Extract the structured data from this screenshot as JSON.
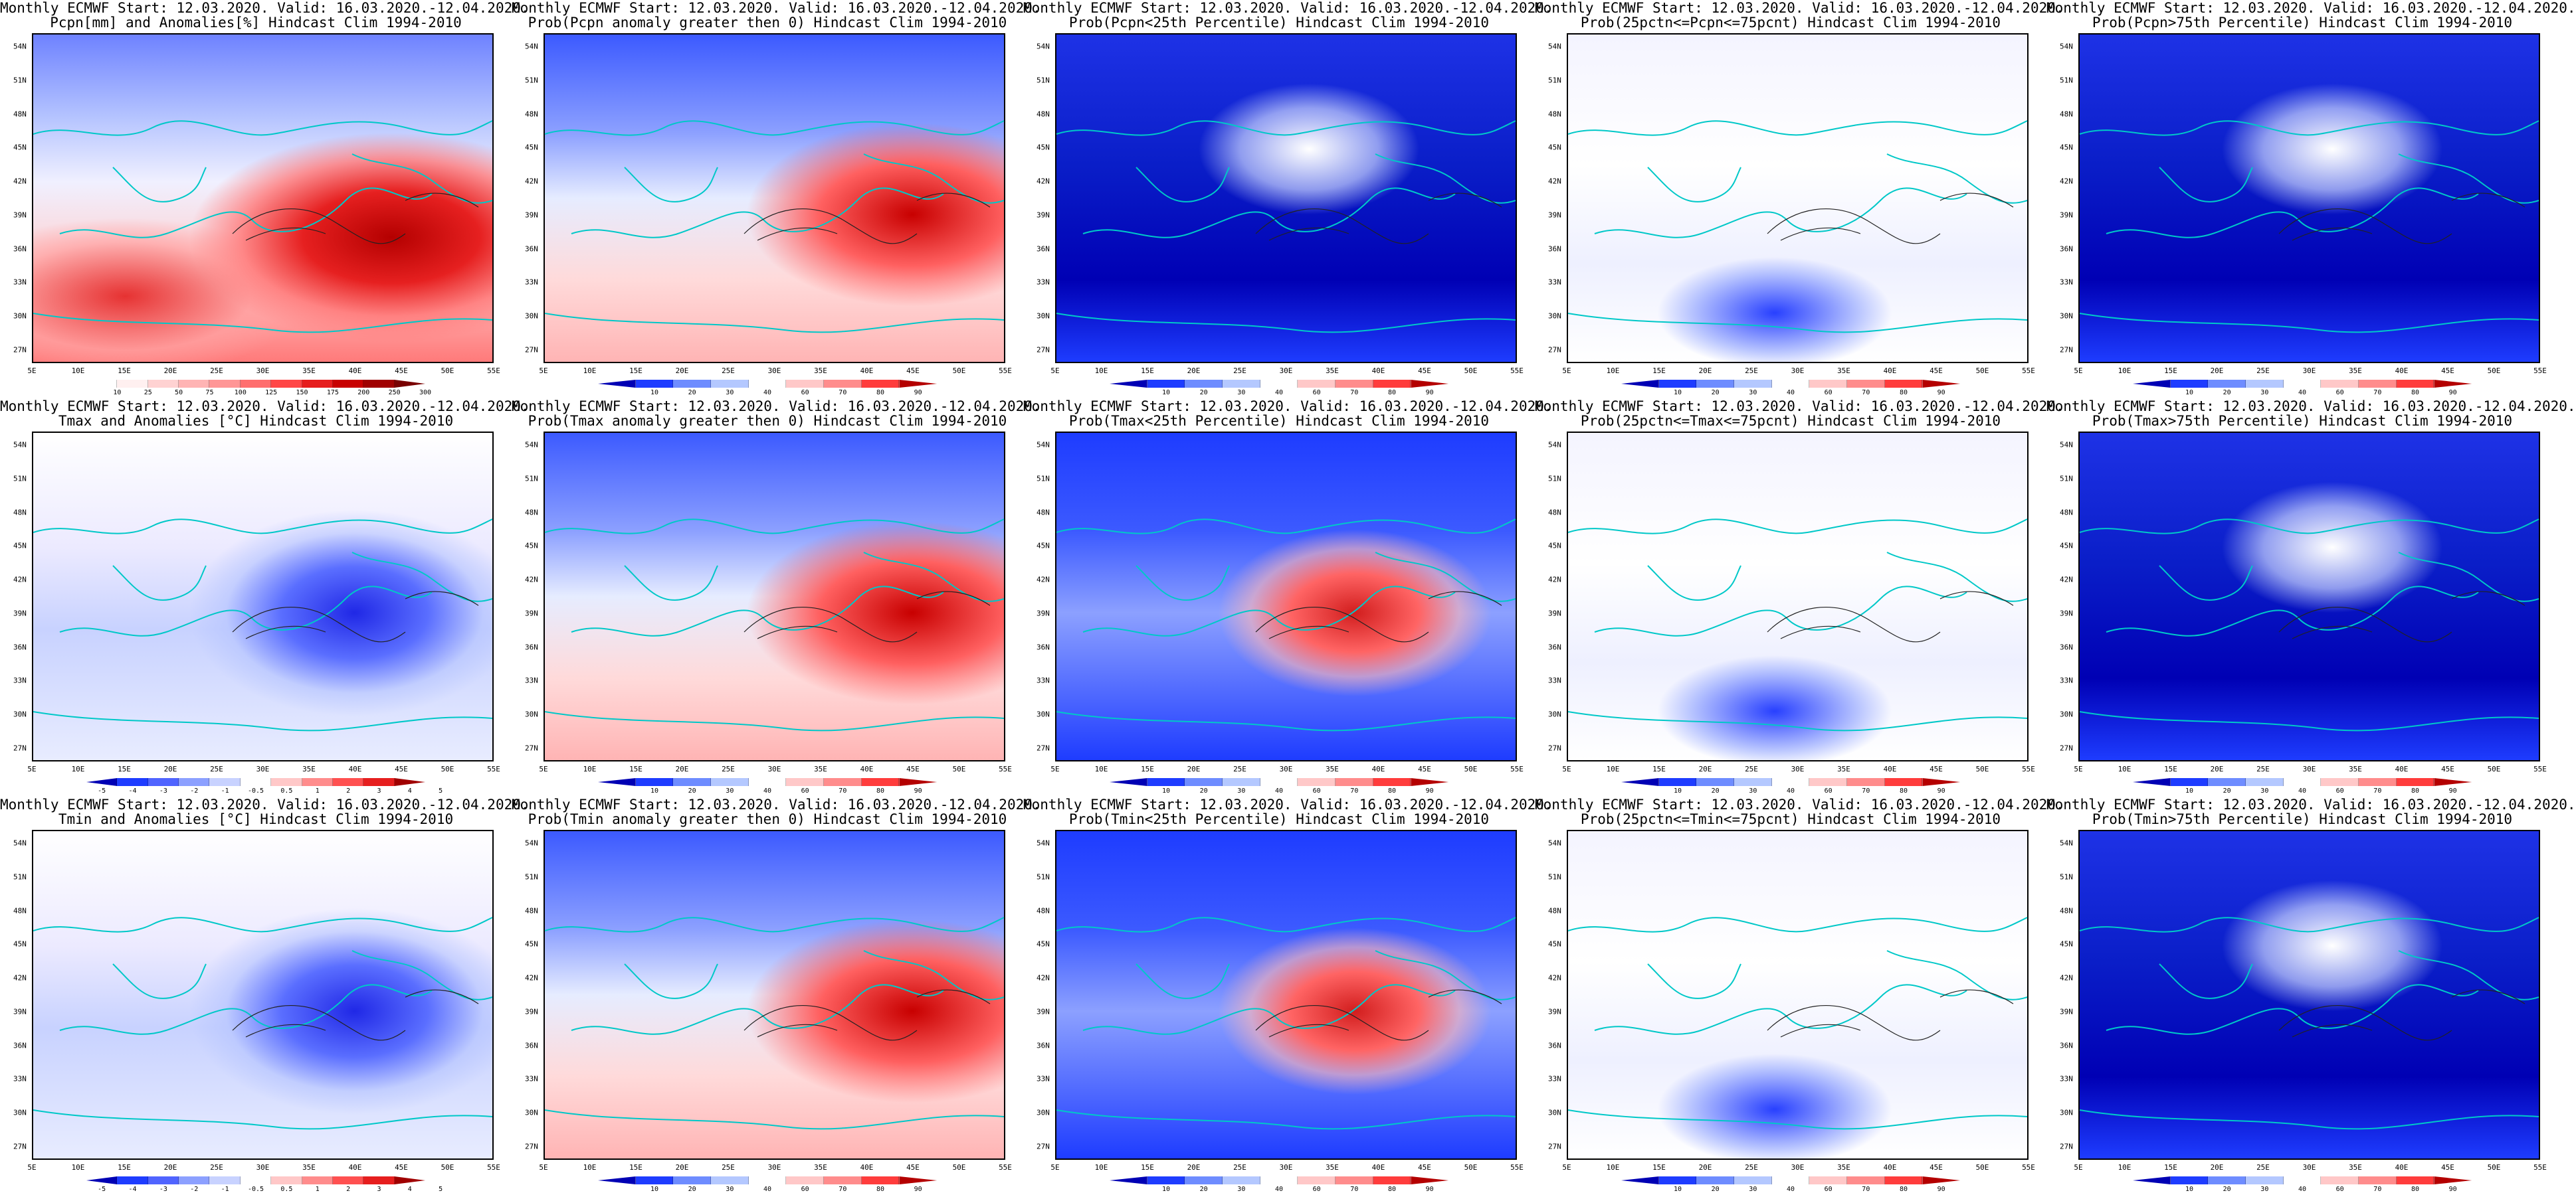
{
  "panels": [
    {
      "line1": "Monthly ECMWF Start: 12.03.2020. Valid: 16.03.2020.-12.04.2020.",
      "line2": "Pcpn[mm] and Anomalies[%] Hindcast Clim 1994-2010",
      "scheme": "pcpn",
      "cbar_labels": [
        "10",
        "25",
        "50",
        "75",
        "100",
        "125",
        "150",
        "175",
        "200",
        "250",
        "300"
      ]
    },
    {
      "line1": "Monthly ECMWF Start: 12.03.2020. Valid: 16.03.2020.-12.04.2020.",
      "line2": "Prob(Pcpn anomaly greater then 0) Hindcast Clim 1994-2010",
      "scheme": "bluered",
      "cbar_labels": [
        "10",
        "20",
        "30",
        "40",
        "60",
        "70",
        "80",
        "90"
      ]
    },
    {
      "line1": "Monthly ECMWF Start: 12.03.2020. Valid: 16.03.2020.-12.04.2020.",
      "line2": "Prob(Pcpn<25th Percentile) Hindcast Clim 1994-2010",
      "scheme": "deepblue",
      "cbar_labels": [
        "10",
        "20",
        "30",
        "40",
        "60",
        "70",
        "80",
        "90"
      ]
    },
    {
      "line1": "Monthly ECMWF Start: 12.03.2020. Valid: 16.03.2020.-12.04.2020.",
      "line2": "Prob(25pctn<=Pcpn<=75pcnt) Hindcast Clim 1994-2010",
      "scheme": "pale",
      "cbar_labels": [
        "10",
        "20",
        "30",
        "40",
        "60",
        "70",
        "80",
        "90"
      ]
    },
    {
      "line1": "Monthly ECMWF Start: 12.03.2020. Valid: 16.03.2020.-12.04.2020.",
      "line2": "Prob(Pcpn>75th Percentile) Hindcast Clim 1994-2010",
      "scheme": "deepblue",
      "cbar_labels": [
        "10",
        "20",
        "30",
        "40",
        "60",
        "70",
        "80",
        "90"
      ]
    },
    {
      "line1": "Monthly ECMWF Start: 12.03.2020. Valid: 16.03.2020.-12.04.2020.",
      "line2": "Tmax and Anomalies [°C] Hindcast Clim 1994-2010",
      "scheme": "anom",
      "cbar_labels": [
        "-5",
        "-4",
        "-3",
        "-2",
        "-1",
        "-0.5",
        "0.5",
        "1",
        "2",
        "3",
        "4",
        "5"
      ]
    },
    {
      "line1": "Monthly ECMWF Start: 12.03.2020. Valid: 16.03.2020.-12.04.2020.",
      "line2": "Prob(Tmax anomaly greater then 0) Hindcast Clim 1994-2010",
      "scheme": "bluered",
      "cbar_labels": [
        "10",
        "20",
        "30",
        "40",
        "60",
        "70",
        "80",
        "90"
      ]
    },
    {
      "line1": "Monthly ECMWF Start: 12.03.2020. Valid: 16.03.2020.-12.04.2020.",
      "line2": "Prob(Tmax<25th Percentile) Hindcast Clim 1994-2010",
      "scheme": "redcenter",
      "cbar_labels": [
        "10",
        "20",
        "30",
        "40",
        "60",
        "70",
        "80",
        "90"
      ]
    },
    {
      "line1": "Monthly ECMWF Start: 12.03.2020. Valid: 16.03.2020.-12.04.2020.",
      "line2": "Prob(25pctn<=Tmax<=75pcnt) Hindcast Clim 1994-2010",
      "scheme": "pale",
      "cbar_labels": [
        "10",
        "20",
        "30",
        "40",
        "60",
        "70",
        "80",
        "90"
      ]
    },
    {
      "line1": "Monthly ECMWF Start: 12.03.2020. Valid: 16.03.2020.-12.04.2020.",
      "line2": "Prob(Tmax>75th Percentile) Hindcast Clim 1994-2010",
      "scheme": "deepblue",
      "cbar_labels": [
        "10",
        "20",
        "30",
        "40",
        "60",
        "70",
        "80",
        "90"
      ]
    },
    {
      "line1": "Monthly ECMWF Start: 12.03.2020. Valid: 16.03.2020.-12.04.2020.",
      "line2": "Tmin and Anomalies [°C] Hindcast Clim 1994-2010",
      "scheme": "anom",
      "cbar_labels": [
        "-5",
        "-4",
        "-3",
        "-2",
        "-1",
        "-0.5",
        "0.5",
        "1",
        "2",
        "3",
        "4",
        "5"
      ]
    },
    {
      "line1": "Monthly ECMWF Start: 12.03.2020. Valid: 16.03.2020.-12.04.2020.",
      "line2": "Prob(Tmin anomaly greater then 0) Hindcast Clim 1994-2010",
      "scheme": "bluered",
      "cbar_labels": [
        "10",
        "20",
        "30",
        "40",
        "60",
        "70",
        "80",
        "90"
      ]
    },
    {
      "line1": "Monthly ECMWF Start: 12.03.2020. Valid: 16.03.2020.-12.04.2020.",
      "line2": "Prob(Tmin<25th Percentile) Hindcast Clim 1994-2010",
      "scheme": "redcenter",
      "cbar_labels": [
        "10",
        "20",
        "30",
        "40",
        "60",
        "70",
        "80",
        "90"
      ]
    },
    {
      "line1": "Monthly ECMWF Start: 12.03.2020. Valid: 16.03.2020.-12.04.2020.",
      "line2": "Prob(25pctn<=Tmin<=75pcnt) Hindcast Clim 1994-2010",
      "scheme": "pale",
      "cbar_labels": [
        "10",
        "20",
        "30",
        "40",
        "60",
        "70",
        "80",
        "90"
      ]
    },
    {
      "line1": "Monthly ECMWF Start: 12.03.2020. Valid: 16.03.2020.-12.04.2020.",
      "line2": "Prob(Tmin>75th Percentile) Hindcast Clim 1994-2010",
      "scheme": "deepblue",
      "cbar_labels": [
        "10",
        "20",
        "30",
        "40",
        "60",
        "70",
        "80",
        "90"
      ]
    }
  ],
  "lat_labels": [
    "54N",
    "51N",
    "48N",
    "45N",
    "42N",
    "39N",
    "36N",
    "33N",
    "30N",
    "27N"
  ],
  "lon_labels": [
    "5E",
    "10E",
    "15E",
    "20E",
    "25E",
    "30E",
    "35E",
    "40E",
    "45E",
    "50E",
    "55E"
  ],
  "cbar_colors": {
    "prob": [
      "#0000b4",
      "#1e3cff",
      "#6e8cff",
      "#b4c8ff",
      "#ffffff",
      "#ffc8c8",
      "#ff8c8c",
      "#ff3c3c",
      "#b40000"
    ],
    "anom": [
      "#0000b4",
      "#1e3cff",
      "#5064ff",
      "#8ca0ff",
      "#c8d2ff",
      "#ffffff",
      "#ffc8c8",
      "#ff8c8c",
      "#ff5050",
      "#e61e1e",
      "#a00000"
    ],
    "pcpn": [
      "#ffffff",
      "#fff0f0",
      "#ffd2d2",
      "#ffb4b4",
      "#ff9696",
      "#ff6e6e",
      "#ff4646",
      "#e61e1e",
      "#c80000",
      "#a00000",
      "#780000"
    ]
  },
  "contour_color": "#00c8c8"
}
